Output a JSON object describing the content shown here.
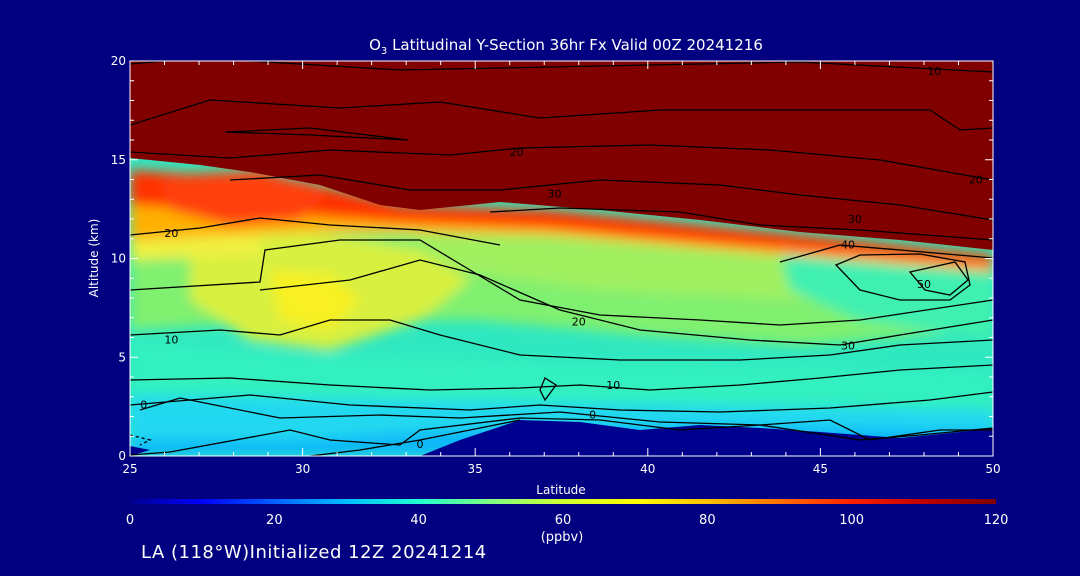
{
  "chart_data": {
    "type": "heatmap",
    "title_main": "O",
    "title_sub": "3",
    "title_rest": " Latitudinal Y-Section 36hr  Fx Valid 00Z 20241216",
    "xlabel": "Latitude",
    "ylabel": "Altitude (km)",
    "xlim": [
      25,
      50
    ],
    "ylim": [
      0,
      20
    ],
    "x_ticks": [
      "25",
      "30",
      "35",
      "40",
      "45",
      "50"
    ],
    "y_ticks": [
      "0",
      "5",
      "10",
      "15",
      "20"
    ],
    "colorbar": {
      "unit": "(ppbv)",
      "range": [
        0,
        120
      ],
      "ticks": [
        "0",
        "20",
        "40",
        "60",
        "80",
        "100",
        "120"
      ],
      "colors": [
        "#00008f",
        "#0000ff",
        "#0060ff",
        "#00c0ff",
        "#20ffd0",
        "#80ff80",
        "#d0ff30",
        "#ffff00",
        "#ffc000",
        "#ff7000",
        "#ff2000",
        "#c00000",
        "#800000"
      ]
    },
    "contour_labels": [
      {
        "text": "10",
        "x": 48.3,
        "y": 19.5
      },
      {
        "text": "20",
        "x": 36.2,
        "y": 15.4
      },
      {
        "text": "20",
        "x": 49.5,
        "y": 14.0
      },
      {
        "text": "30",
        "x": 37.3,
        "y": 13.3
      },
      {
        "text": "30",
        "x": 46.0,
        "y": 12.0
      },
      {
        "text": "40",
        "x": 45.8,
        "y": 10.7
      },
      {
        "text": "50",
        "x": 48.0,
        "y": 8.7
      },
      {
        "text": "20",
        "x": 26.2,
        "y": 11.3
      },
      {
        "text": "20",
        "x": 38.0,
        "y": 6.8
      },
      {
        "text": "30",
        "x": 45.8,
        "y": 5.6
      },
      {
        "text": "10",
        "x": 26.2,
        "y": 5.9
      },
      {
        "text": "10",
        "x": 39.0,
        "y": 3.6
      },
      {
        "text": "0",
        "x": 25.4,
        "y": 2.6
      },
      {
        "text": "0",
        "x": 38.4,
        "y": 2.1
      },
      {
        "text": "0",
        "x": 33.4,
        "y": 0.6
      }
    ],
    "grid": false
  },
  "footer": "LA (118°W)Initialized 12Z 20241214"
}
